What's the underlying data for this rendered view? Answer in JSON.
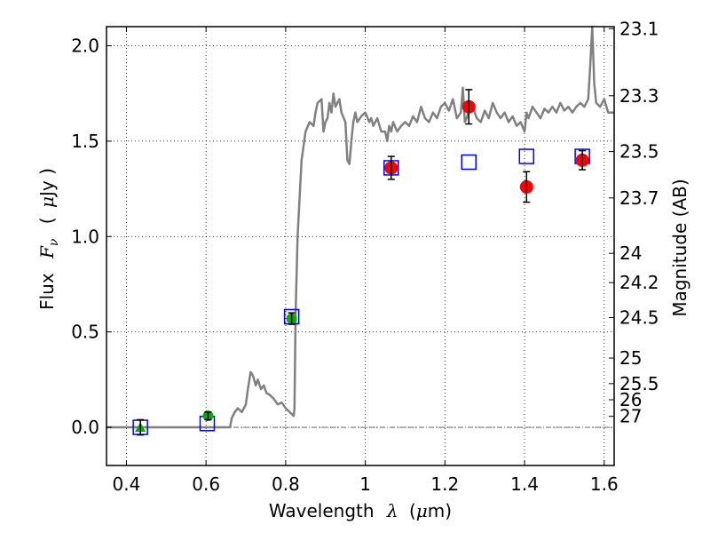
{
  "chart_data": {
    "type": "scatter",
    "xlabel_prefix": "Wavelength",
    "xlabel_lambda": "λ",
    "xlabel_unit_open": "(",
    "xlabel_mu": "μ",
    "xlabel_unit_rest": "m)",
    "ylabel_prefix": "Flux",
    "ylabel_F": "F",
    "ylabel_nu": "ν",
    "ylabel_unit_open": "(",
    "ylabel_mu": "μ",
    "ylabel_unit_rest": "Jy )",
    "y2label": "Magnitude (AB)",
    "xlim": [
      0.35,
      1.625
    ],
    "ylim": [
      -0.2,
      2.1
    ],
    "xticks": [
      {
        "v": 0.4,
        "label": "0.4"
      },
      {
        "v": 0.6,
        "label": "0.6"
      },
      {
        "v": 0.8,
        "label": "0.8"
      },
      {
        "v": 1.0,
        "label": "1"
      },
      {
        "v": 1.2,
        "label": "1.2"
      },
      {
        "v": 1.4,
        "label": "1.4"
      },
      {
        "v": 1.6,
        "label": "1.6"
      }
    ],
    "yticks": [
      {
        "v": 0.0,
        "label": "0.0"
      },
      {
        "v": 0.5,
        "label": "0.5"
      },
      {
        "v": 1.0,
        "label": "1.0"
      },
      {
        "v": 1.5,
        "label": "1.5"
      },
      {
        "v": 2.0,
        "label": "2.0"
      }
    ],
    "mag_ticks": [
      {
        "label": "23.1",
        "mag": 23.1
      },
      {
        "label": "23.3",
        "mag": 23.3
      },
      {
        "label": "23.5",
        "mag": 23.5
      },
      {
        "label": "23.7",
        "mag": 23.7
      },
      {
        "label": "24",
        "mag": 24.0
      },
      {
        "label": "24.2",
        "mag": 24.2
      },
      {
        "label": "24.5",
        "mag": 24.5
      },
      {
        "label": "25",
        "mag": 25.0
      },
      {
        "label": "25.5",
        "mag": 25.5
      },
      {
        "label": "26",
        "mag": 26.0
      },
      {
        "label": "27",
        "mag": 27.0
      }
    ],
    "grid": true,
    "zero_line": true,
    "colors": {
      "spectrum": "#808080",
      "model": "#0000ff",
      "optical": "#00b000",
      "nir": "#ff0000",
      "errorbar": "#000000"
    },
    "spectrum": [
      [
        0.35,
        0.0
      ],
      [
        0.66,
        0.0
      ],
      [
        0.665,
        0.05
      ],
      [
        0.672,
        0.08
      ],
      [
        0.68,
        0.1
      ],
      [
        0.69,
        0.08
      ],
      [
        0.7,
        0.12
      ],
      [
        0.705,
        0.2
      ],
      [
        0.712,
        0.29
      ],
      [
        0.718,
        0.27
      ],
      [
        0.725,
        0.22
      ],
      [
        0.73,
        0.25
      ],
      [
        0.738,
        0.2
      ],
      [
        0.745,
        0.22
      ],
      [
        0.752,
        0.18
      ],
      [
        0.76,
        0.17
      ],
      [
        0.77,
        0.15
      ],
      [
        0.78,
        0.12
      ],
      [
        0.79,
        0.13
      ],
      [
        0.8,
        0.1
      ],
      [
        0.81,
        0.08
      ],
      [
        0.82,
        0.06
      ],
      [
        0.822,
        0.1
      ],
      [
        0.825,
        0.6
      ],
      [
        0.83,
        1.0
      ],
      [
        0.84,
        1.4
      ],
      [
        0.85,
        1.55
      ],
      [
        0.86,
        1.6
      ],
      [
        0.87,
        1.58
      ],
      [
        0.875,
        1.65
      ],
      [
        0.88,
        1.7
      ],
      [
        0.89,
        1.72
      ],
      [
        0.895,
        1.55
      ],
      [
        0.9,
        1.6
      ],
      [
        0.905,
        1.62
      ],
      [
        0.91,
        1.7
      ],
      [
        0.915,
        1.65
      ],
      [
        0.92,
        1.75
      ],
      [
        0.925,
        1.68
      ],
      [
        0.935,
        1.72
      ],
      [
        0.94,
        1.65
      ],
      [
        0.95,
        1.6
      ],
      [
        0.955,
        1.4
      ],
      [
        0.96,
        1.38
      ],
      [
        0.965,
        1.5
      ],
      [
        0.97,
        1.6
      ],
      [
        0.975,
        1.65
      ],
      [
        0.98,
        1.6
      ],
      [
        0.99,
        1.63
      ],
      [
        1.0,
        1.65
      ],
      [
        1.01,
        1.6
      ],
      [
        1.015,
        1.62
      ],
      [
        1.02,
        1.58
      ],
      [
        1.03,
        1.62
      ],
      [
        1.04,
        1.55
      ],
      [
        1.05,
        1.55
      ],
      [
        1.055,
        1.5
      ],
      [
        1.06,
        1.58
      ],
      [
        1.065,
        1.55
      ],
      [
        1.07,
        1.6
      ],
      [
        1.08,
        1.55
      ],
      [
        1.09,
        1.58
      ],
      [
        1.1,
        1.6
      ],
      [
        1.11,
        1.58
      ],
      [
        1.12,
        1.63
      ],
      [
        1.13,
        1.6
      ],
      [
        1.14,
        1.68
      ],
      [
        1.15,
        1.62
      ],
      [
        1.16,
        1.6
      ],
      [
        1.17,
        1.65
      ],
      [
        1.18,
        1.62
      ],
      [
        1.19,
        1.68
      ],
      [
        1.2,
        1.7
      ],
      [
        1.21,
        1.66
      ],
      [
        1.22,
        1.72
      ],
      [
        1.23,
        1.62
      ],
      [
        1.24,
        1.65
      ],
      [
        1.245,
        1.78
      ],
      [
        1.25,
        1.6
      ],
      [
        1.26,
        1.65
      ],
      [
        1.27,
        1.68
      ],
      [
        1.28,
        1.62
      ],
      [
        1.29,
        1.6
      ],
      [
        1.3,
        1.66
      ],
      [
        1.31,
        1.62
      ],
      [
        1.32,
        1.7
      ],
      [
        1.33,
        1.65
      ],
      [
        1.34,
        1.62
      ],
      [
        1.35,
        1.65
      ],
      [
        1.36,
        1.6
      ],
      [
        1.37,
        1.63
      ],
      [
        1.38,
        1.58
      ],
      [
        1.39,
        1.6
      ],
      [
        1.4,
        1.55
      ],
      [
        1.405,
        1.65
      ],
      [
        1.41,
        1.62
      ],
      [
        1.42,
        1.68
      ],
      [
        1.43,
        1.65
      ],
      [
        1.44,
        1.62
      ],
      [
        1.45,
        1.67
      ],
      [
        1.46,
        1.65
      ],
      [
        1.47,
        1.68
      ],
      [
        1.48,
        1.65
      ],
      [
        1.49,
        1.7
      ],
      [
        1.5,
        1.66
      ],
      [
        1.51,
        1.68
      ],
      [
        1.52,
        1.65
      ],
      [
        1.53,
        1.68
      ],
      [
        1.54,
        1.7
      ],
      [
        1.55,
        1.68
      ],
      [
        1.56,
        1.72
      ],
      [
        1.565,
        1.9
      ],
      [
        1.57,
        2.12
      ],
      [
        1.575,
        1.8
      ],
      [
        1.58,
        1.7
      ],
      [
        1.59,
        1.68
      ],
      [
        1.6,
        1.72
      ],
      [
        1.61,
        1.65
      ],
      [
        1.625,
        1.65
      ]
    ],
    "model_points": [
      {
        "x": 0.435,
        "y": 0.0
      },
      {
        "x": 0.603,
        "y": 0.02
      },
      {
        "x": 0.815,
        "y": 0.58
      },
      {
        "x": 1.065,
        "y": 1.36
      },
      {
        "x": 1.26,
        "y": 1.39
      },
      {
        "x": 1.405,
        "y": 1.42
      },
      {
        "x": 1.545,
        "y": 1.42
      }
    ],
    "optical_points": [
      {
        "x": 0.435,
        "y": 0.0,
        "err": 0.04,
        "marker": "triangle"
      },
      {
        "x": 0.605,
        "y": 0.06,
        "err": 0.02,
        "marker": "circle"
      },
      {
        "x": 0.815,
        "y": 0.57,
        "err": 0.03,
        "marker": "circle"
      }
    ],
    "nir_points": [
      {
        "x": 1.065,
        "y": 1.36,
        "err": 0.06
      },
      {
        "x": 1.26,
        "y": 1.68,
        "err": 0.09
      },
      {
        "x": 1.405,
        "y": 1.26,
        "err": 0.08
      },
      {
        "x": 1.545,
        "y": 1.4,
        "err": 0.05
      }
    ]
  }
}
